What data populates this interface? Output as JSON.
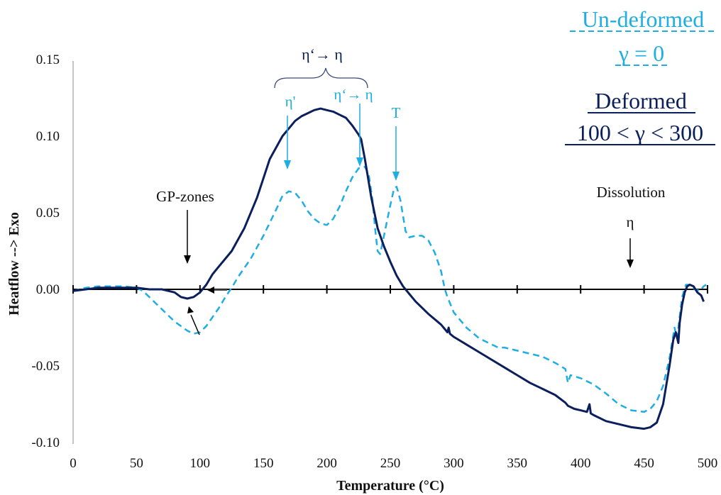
{
  "chart_data": {
    "type": "line",
    "xlabel": "Temperature (°C)",
    "ylabel": "Heatflow --> Exo",
    "xlim": [
      0,
      500
    ],
    "ylim": [
      -0.1,
      0.15
    ],
    "x_ticks": [
      "0",
      "50",
      "100",
      "150",
      "200",
      "250",
      "300",
      "350",
      "400",
      "450",
      "500"
    ],
    "y_ticks": [
      "0.15",
      "0.10",
      "0.05",
      "0.00",
      "-0.05",
      "-0.10"
    ],
    "grid": false,
    "series": [
      {
        "name": "Deformed 100 < γ < 300",
        "color": "#0b1f5c",
        "style": "solid",
        "points": [
          [
            0,
            -0.001
          ],
          [
            10,
            0.0
          ],
          [
            20,
            0.001
          ],
          [
            35,
            0.001
          ],
          [
            50,
            0.001
          ],
          [
            60,
            0.0
          ],
          [
            70,
            0.0
          ],
          [
            80,
            -0.002
          ],
          [
            85,
            -0.005
          ],
          [
            90,
            -0.006
          ],
          [
            95,
            -0.005
          ],
          [
            100,
            -0.002
          ],
          [
            105,
            0.003
          ],
          [
            110,
            0.01
          ],
          [
            115,
            0.015
          ],
          [
            125,
            0.025
          ],
          [
            135,
            0.04
          ],
          [
            145,
            0.06
          ],
          [
            155,
            0.085
          ],
          [
            165,
            0.1
          ],
          [
            170,
            0.105
          ],
          [
            175,
            0.11
          ],
          [
            180,
            0.113
          ],
          [
            185,
            0.115
          ],
          [
            190,
            0.117
          ],
          [
            195,
            0.118
          ],
          [
            200,
            0.117
          ],
          [
            205,
            0.116
          ],
          [
            210,
            0.114
          ],
          [
            215,
            0.112
          ],
          [
            220,
            0.107
          ],
          [
            225,
            0.101
          ],
          [
            227,
            0.098
          ],
          [
            230,
            0.085
          ],
          [
            235,
            0.06
          ],
          [
            240,
            0.04
          ],
          [
            245,
            0.028
          ],
          [
            250,
            0.018
          ],
          [
            255,
            0.009
          ],
          [
            260,
            0.002
          ],
          [
            265,
            -0.003
          ],
          [
            270,
            -0.008
          ],
          [
            280,
            -0.016
          ],
          [
            290,
            -0.023
          ],
          [
            295,
            -0.028
          ],
          [
            296,
            -0.025
          ],
          [
            297,
            -0.029
          ],
          [
            300,
            -0.031
          ],
          [
            310,
            -0.036
          ],
          [
            320,
            -0.041
          ],
          [
            330,
            -0.046
          ],
          [
            340,
            -0.051
          ],
          [
            350,
            -0.056
          ],
          [
            360,
            -0.061
          ],
          [
            370,
            -0.065
          ],
          [
            380,
            -0.069
          ],
          [
            388,
            -0.074
          ],
          [
            390,
            -0.076
          ],
          [
            395,
            -0.078
          ],
          [
            400,
            -0.079
          ],
          [
            405,
            -0.08
          ],
          [
            407,
            -0.075
          ],
          [
            408,
            -0.081
          ],
          [
            410,
            -0.082
          ],
          [
            420,
            -0.086
          ],
          [
            430,
            -0.088
          ],
          [
            440,
            -0.09
          ],
          [
            450,
            -0.091
          ],
          [
            455,
            -0.09
          ],
          [
            460,
            -0.087
          ],
          [
            465,
            -0.075
          ],
          [
            470,
            -0.05
          ],
          [
            473,
            -0.033
          ],
          [
            475,
            -0.028
          ],
          [
            477,
            -0.035
          ],
          [
            478,
            -0.022
          ],
          [
            480,
            -0.01
          ],
          [
            482,
            -0.002
          ],
          [
            484,
            0.002
          ],
          [
            486,
            0.003
          ],
          [
            489,
            0.002
          ],
          [
            492,
            -0.002
          ],
          [
            495,
            -0.004
          ],
          [
            497,
            -0.008
          ]
        ]
      },
      {
        "name": "Un-deformed γ = 0",
        "color": "#1eaee3",
        "style": "dashed",
        "points": [
          [
            0,
            -0.001
          ],
          [
            10,
            0.001
          ],
          [
            20,
            0.002
          ],
          [
            30,
            0.002
          ],
          [
            40,
            0.002
          ],
          [
            50,
            0.001
          ],
          [
            55,
            -0.001
          ],
          [
            60,
            -0.005
          ],
          [
            70,
            -0.013
          ],
          [
            80,
            -0.021
          ],
          [
            90,
            -0.027
          ],
          [
            95,
            -0.029
          ],
          [
            100,
            -0.028
          ],
          [
            105,
            -0.024
          ],
          [
            110,
            -0.018
          ],
          [
            115,
            -0.012
          ],
          [
            120,
            -0.005
          ],
          [
            125,
            0.001
          ],
          [
            130,
            0.008
          ],
          [
            140,
            0.02
          ],
          [
            150,
            0.035
          ],
          [
            160,
            0.052
          ],
          [
            165,
            0.061
          ],
          [
            170,
            0.064
          ],
          [
            175,
            0.063
          ],
          [
            180,
            0.058
          ],
          [
            185,
            0.051
          ],
          [
            190,
            0.046
          ],
          [
            195,
            0.043
          ],
          [
            200,
            0.042
          ],
          [
            205,
            0.046
          ],
          [
            210,
            0.054
          ],
          [
            215,
            0.064
          ],
          [
            220,
            0.073
          ],
          [
            225,
            0.079
          ],
          [
            230,
            0.08
          ],
          [
            233,
            0.075
          ],
          [
            236,
            0.058
          ],
          [
            238,
            0.04
          ],
          [
            240,
            0.025
          ],
          [
            242,
            0.023
          ],
          [
            245,
            0.035
          ],
          [
            250,
            0.055
          ],
          [
            253,
            0.066
          ],
          [
            255,
            0.067
          ],
          [
            258,
            0.058
          ],
          [
            262,
            0.038
          ],
          [
            265,
            0.034
          ],
          [
            270,
            0.035
          ],
          [
            275,
            0.035
          ],
          [
            280,
            0.032
          ],
          [
            285,
            0.024
          ],
          [
            290,
            0.012
          ],
          [
            293,
            0.0
          ],
          [
            295,
            -0.005
          ],
          [
            300,
            -0.015
          ],
          [
            310,
            -0.025
          ],
          [
            320,
            -0.032
          ],
          [
            330,
            -0.036
          ],
          [
            335,
            -0.038
          ],
          [
            340,
            -0.038
          ],
          [
            350,
            -0.04
          ],
          [
            360,
            -0.042
          ],
          [
            370,
            -0.044
          ],
          [
            380,
            -0.048
          ],
          [
            388,
            -0.052
          ],
          [
            390,
            -0.061
          ],
          [
            392,
            -0.056
          ],
          [
            400,
            -0.058
          ],
          [
            410,
            -0.062
          ],
          [
            420,
            -0.068
          ],
          [
            430,
            -0.075
          ],
          [
            440,
            -0.079
          ],
          [
            450,
            -0.08
          ],
          [
            455,
            -0.078
          ],
          [
            460,
            -0.073
          ],
          [
            465,
            -0.063
          ],
          [
            470,
            -0.045
          ],
          [
            474,
            -0.025
          ],
          [
            476,
            -0.032
          ],
          [
            478,
            -0.018
          ],
          [
            480,
            -0.005
          ],
          [
            483,
            0.003
          ],
          [
            486,
            0.003
          ],
          [
            490,
            0.0
          ],
          [
            494,
            -0.001
          ],
          [
            497,
            0.002
          ],
          [
            499,
            0.003
          ]
        ]
      }
    ],
    "annotations": {
      "gp_zones": "GP-zones",
      "dissolution": "Dissolution",
      "eta": "η",
      "eta_prime": "η'",
      "eta_transition_dark": "η‘→ η",
      "eta_transition_light": "η‘→ η",
      "t_label": "T"
    },
    "legend": {
      "undeformed_line1": "Un-deformed",
      "undeformed_line2": "γ = 0",
      "deformed_line1": "Deformed",
      "deformed_line2": "100 < γ < 300"
    }
  }
}
